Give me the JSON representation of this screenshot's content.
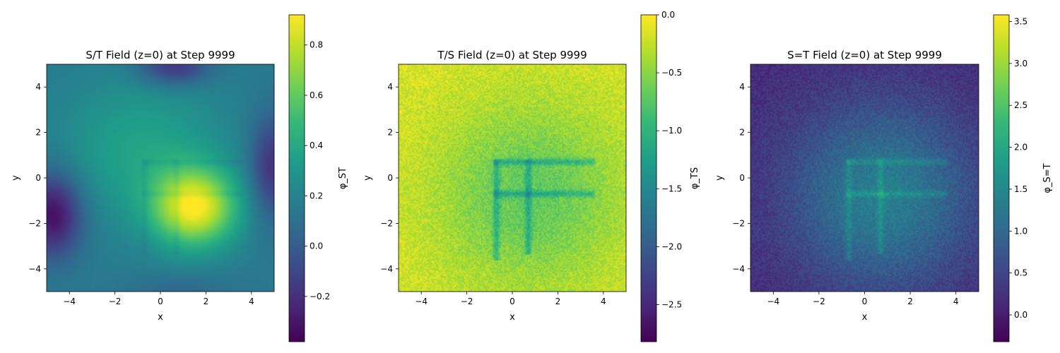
{
  "colormap": {
    "name": "viridis",
    "stops": [
      "#440154",
      "#482878",
      "#3e4989",
      "#31688e",
      "#26828e",
      "#1f9e89",
      "#35b779",
      "#6ece58",
      "#b5de2b",
      "#fde725"
    ]
  },
  "chart_data": [
    {
      "type": "heatmap",
      "title": "S/T Field (z=0) at Step 9999",
      "xlabel": "x",
      "ylabel": "y",
      "xlim": [
        -5,
        5
      ],
      "ylim": [
        -5,
        5
      ],
      "xticks": [
        "−4",
        "−2",
        "0",
        "2",
        "4"
      ],
      "yticks": [
        "4",
        "2",
        "0",
        "−2",
        "−4"
      ],
      "colorbar": {
        "label": "φ_ST",
        "range": [
          -0.38,
          0.92
        ],
        "ticks": [
          "0.8",
          "0.6",
          "0.4",
          "0.2",
          "0.0",
          "−0.2"
        ],
        "tick_values": [
          0.8,
          0.6,
          0.4,
          0.2,
          0.0,
          -0.2
        ]
      },
      "field": {
        "background": 0.15,
        "blobs": [
          {
            "x": 1.5,
            "y": -1.3,
            "sx": 1.3,
            "sy": 1.2,
            "amp": 0.72
          },
          {
            "x": -0.8,
            "y": 1.2,
            "sx": 2.6,
            "sy": 2.3,
            "amp": 0.22
          },
          {
            "x": -4.7,
            "y": -1.6,
            "sx": 0.9,
            "sy": 1.3,
            "amp": -0.5
          },
          {
            "x": 0.6,
            "y": 4.9,
            "sx": 1.1,
            "sy": 0.6,
            "amp": -0.35
          },
          {
            "x": 4.9,
            "y": 0.5,
            "sx": 0.7,
            "sy": 1.6,
            "amp": -0.35
          },
          {
            "x": 0.8,
            "y": -4.9,
            "sx": 1.6,
            "sy": 0.5,
            "amp": -0.1
          }
        ],
        "lines": [
          {
            "orient": "v",
            "pos": -0.7,
            "from": -3.4,
            "to": 0.8,
            "delta": -0.05
          },
          {
            "orient": "v",
            "pos": 0.7,
            "from": -3.4,
            "to": 0.8,
            "delta": -0.05
          },
          {
            "orient": "h",
            "pos": 0.7,
            "from": -0.8,
            "to": 3.6,
            "delta": -0.05
          },
          {
            "orient": "h",
            "pos": -0.7,
            "from": -0.8,
            "to": 3.6,
            "delta": -0.05
          }
        ],
        "noise": 0.0
      }
    },
    {
      "type": "heatmap",
      "title": "T/S Field (z=0) at Step 9999",
      "xlabel": "x",
      "ylabel": "y",
      "xlim": [
        -5,
        5
      ],
      "ylim": [
        -5,
        5
      ],
      "xticks": [
        "−4",
        "−2",
        "0",
        "2",
        "4"
      ],
      "yticks": [
        "4",
        "2",
        "0",
        "−2",
        "−4"
      ],
      "colorbar": {
        "label": "φ_TS",
        "range": [
          -2.82,
          0.0
        ],
        "ticks": [
          "0.0",
          "−0.5",
          "−1.0",
          "−1.5",
          "−2.0",
          "−2.5"
        ],
        "tick_values": [
          0.0,
          -0.5,
          -1.0,
          -1.5,
          -2.0,
          -2.5
        ]
      },
      "field": {
        "background": -0.15,
        "blobs": [
          {
            "x": 0.8,
            "y": -0.8,
            "sx": 3.0,
            "sy": 3.0,
            "amp": -0.55
          }
        ],
        "lines": [
          {
            "orient": "v",
            "pos": -0.7,
            "from": -3.6,
            "to": 0.8,
            "delta": -0.45
          },
          {
            "orient": "v",
            "pos": 0.7,
            "from": -3.4,
            "to": 0.8,
            "delta": -0.45
          },
          {
            "orient": "h",
            "pos": 0.7,
            "from": -0.8,
            "to": 3.6,
            "delta": -0.45
          },
          {
            "orient": "h",
            "pos": -0.7,
            "from": -0.8,
            "to": 3.6,
            "delta": -0.45
          }
        ],
        "noise": 0.18
      }
    },
    {
      "type": "heatmap",
      "title": "S=T Field (z=0) at Step 9999",
      "xlabel": "x",
      "ylabel": "y",
      "xlim": [
        -5,
        5
      ],
      "ylim": [
        -5,
        5
      ],
      "xticks": [
        "−4",
        "−2",
        "0",
        "2",
        "4"
      ],
      "yticks": [
        "4",
        "2",
        "0",
        "−2",
        "−4"
      ],
      "colorbar": {
        "label": "φ_S=T",
        "range": [
          -0.32,
          3.58
        ],
        "ticks": [
          "3.5",
          "3.0",
          "2.5",
          "2.0",
          "1.5",
          "1.0",
          "0.5",
          "0.0"
        ],
        "tick_values": [
          3.5,
          3.0,
          2.5,
          2.0,
          1.5,
          1.0,
          0.5,
          0.0
        ]
      },
      "field": {
        "background": 0.15,
        "blobs": [
          {
            "x": 0.8,
            "y": -0.8,
            "sx": 2.9,
            "sy": 2.9,
            "amp": 1.2
          }
        ],
        "lines": [
          {
            "orient": "v",
            "pos": -0.7,
            "from": -3.6,
            "to": 0.8,
            "delta": 0.4
          },
          {
            "orient": "v",
            "pos": 0.7,
            "from": -3.4,
            "to": 0.8,
            "delta": 0.4
          },
          {
            "orient": "h",
            "pos": 0.7,
            "from": -0.8,
            "to": 3.6,
            "delta": 0.4
          },
          {
            "orient": "h",
            "pos": -0.7,
            "from": -0.8,
            "to": 3.6,
            "delta": 0.4
          }
        ],
        "noise": 0.22
      }
    }
  ]
}
